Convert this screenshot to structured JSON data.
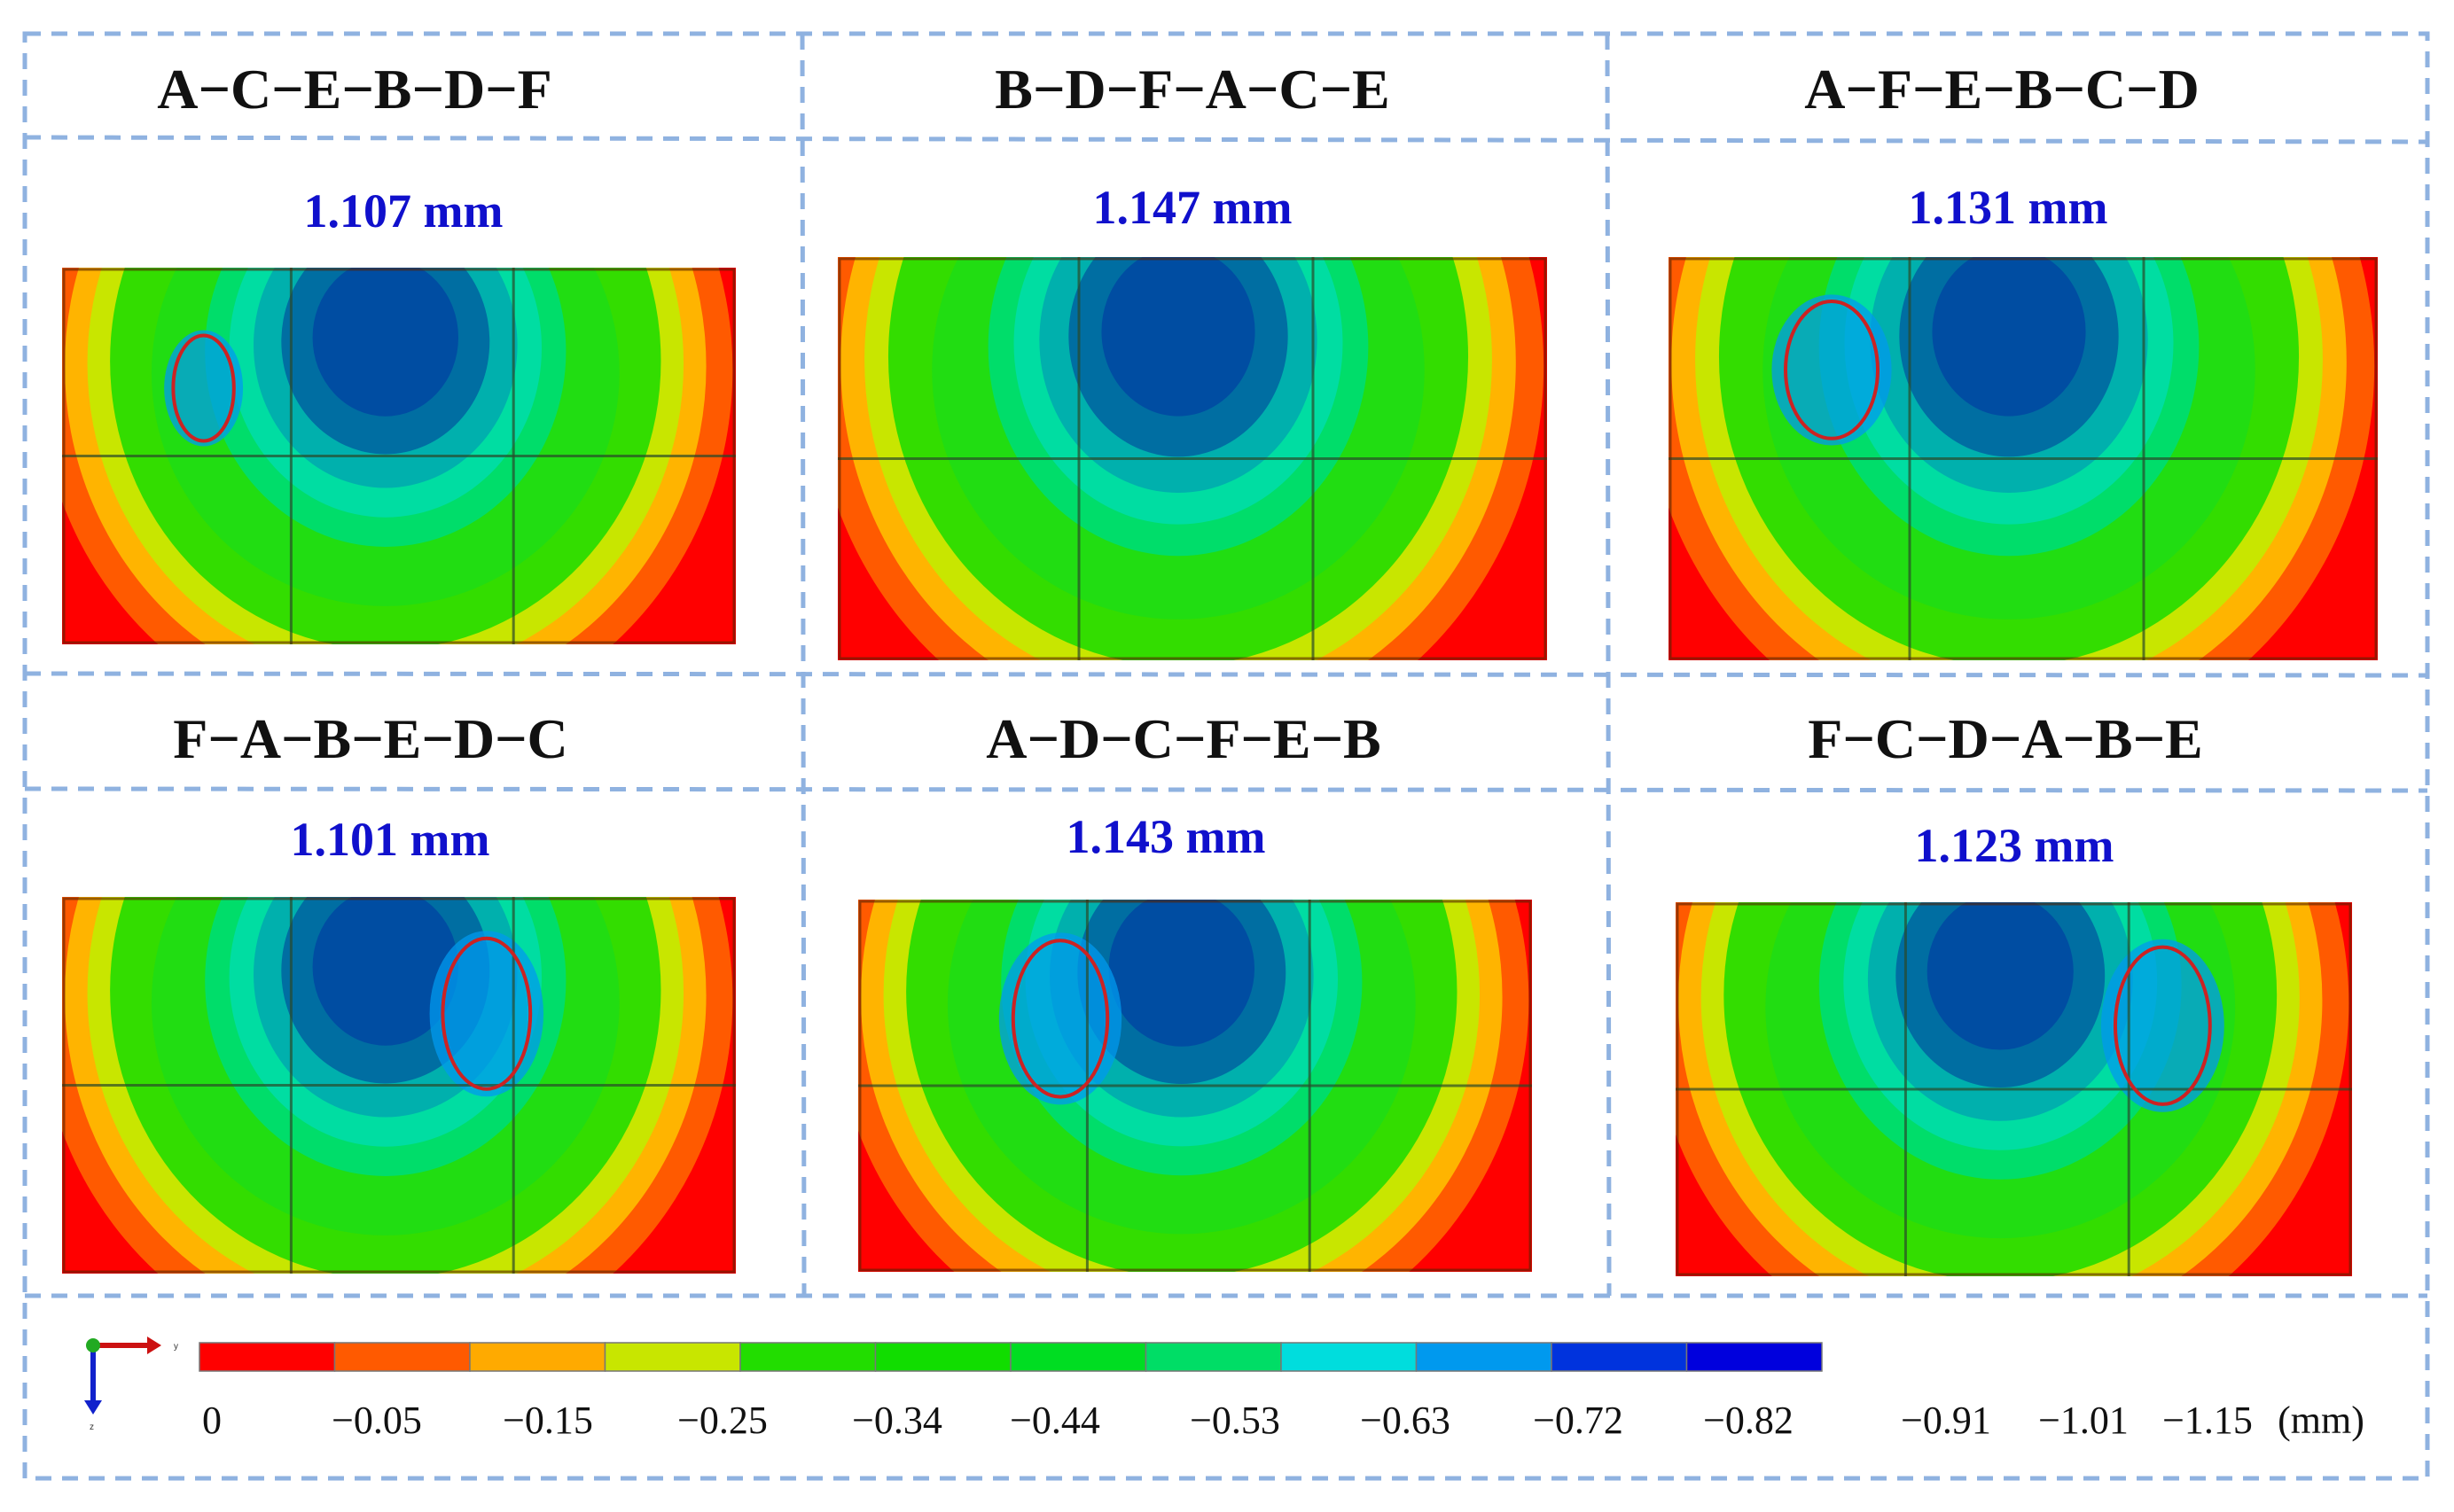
{
  "figure": {
    "panels": [
      {
        "sequence": "A−C−E−B−D−F",
        "max_deformation": "1.107 mm",
        "marker": "left"
      },
      {
        "sequence": "B−D−F−A−C−E",
        "max_deformation": "1.147 mm",
        "marker": "none"
      },
      {
        "sequence": "A−F−E−B−C−D",
        "max_deformation": "1.131 mm",
        "marker": "left"
      },
      {
        "sequence": "F−A−B−E−D−C",
        "max_deformation": "1.101 mm",
        "marker": "right"
      },
      {
        "sequence": "A−D−C−F−E−B",
        "max_deformation": "1.143 mm",
        "marker": "left"
      },
      {
        "sequence": "F−C−D−A−B−E",
        "max_deformation": "1.123 mm",
        "marker": "right"
      }
    ],
    "legend": {
      "unit": "(mm)",
      "ticks": [
        "0",
        "−0.05",
        "−0.15",
        "−0.25",
        "−0.34",
        "−0.44",
        "−0.53",
        "−0.63",
        "−0.72",
        "−0.82",
        "−0.91",
        "−1.01",
        "−1.15"
      ],
      "colors": [
        "#ff0000",
        "#ff5a00",
        "#ffb400",
        "#c8e600",
        "#33dd00",
        "#11dd22",
        "#00dd33",
        "#00dd88",
        "#00dddd",
        "#0099ee",
        "#0033dd",
        "#0000dd"
      ]
    },
    "axis_labels": {
      "y": "y",
      "z": "z"
    },
    "colors": {
      "title": "#111111",
      "value": "#1010cc",
      "frame": "#8fb2e0",
      "marker": "#cc2222"
    }
  }
}
